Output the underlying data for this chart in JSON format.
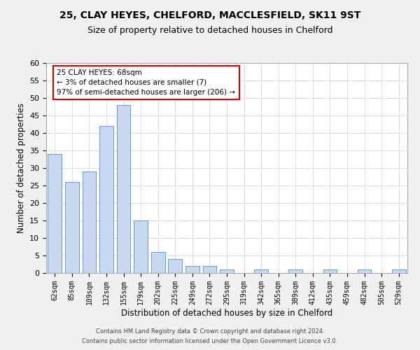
{
  "title1": "25, CLAY HEYES, CHELFORD, MACCLESFIELD, SK11 9ST",
  "title2": "Size of property relative to detached houses in Chelford",
  "xlabel": "Distribution of detached houses by size in Chelford",
  "ylabel": "Number of detached properties",
  "categories": [
    "62sqm",
    "85sqm",
    "109sqm",
    "132sqm",
    "155sqm",
    "179sqm",
    "202sqm",
    "225sqm",
    "249sqm",
    "272sqm",
    "295sqm",
    "319sqm",
    "342sqm",
    "365sqm",
    "389sqm",
    "412sqm",
    "435sqm",
    "459sqm",
    "482sqm",
    "505sqm",
    "529sqm"
  ],
  "values": [
    34,
    26,
    29,
    42,
    48,
    15,
    6,
    4,
    2,
    2,
    1,
    0,
    1,
    0,
    1,
    0,
    1,
    0,
    1,
    0,
    1
  ],
  "bar_color": "#c8d8f0",
  "bar_edge_color": "#6699cc",
  "ylim": [
    0,
    60
  ],
  "yticks": [
    0,
    5,
    10,
    15,
    20,
    25,
    30,
    35,
    40,
    45,
    50,
    55,
    60
  ],
  "annotation_box_text": "25 CLAY HEYES: 68sqm\n← 3% of detached houses are smaller (7)\n97% of semi-detached houses are larger (206) →",
  "footer1": "Contains HM Land Registry data © Crown copyright and database right 2024.",
  "footer2": "Contains public sector information licensed under the Open Government Licence v3.0.",
  "bg_color": "#f0f0f0",
  "plot_bg_color": "#ffffff",
  "grid_color": "#dddddd"
}
